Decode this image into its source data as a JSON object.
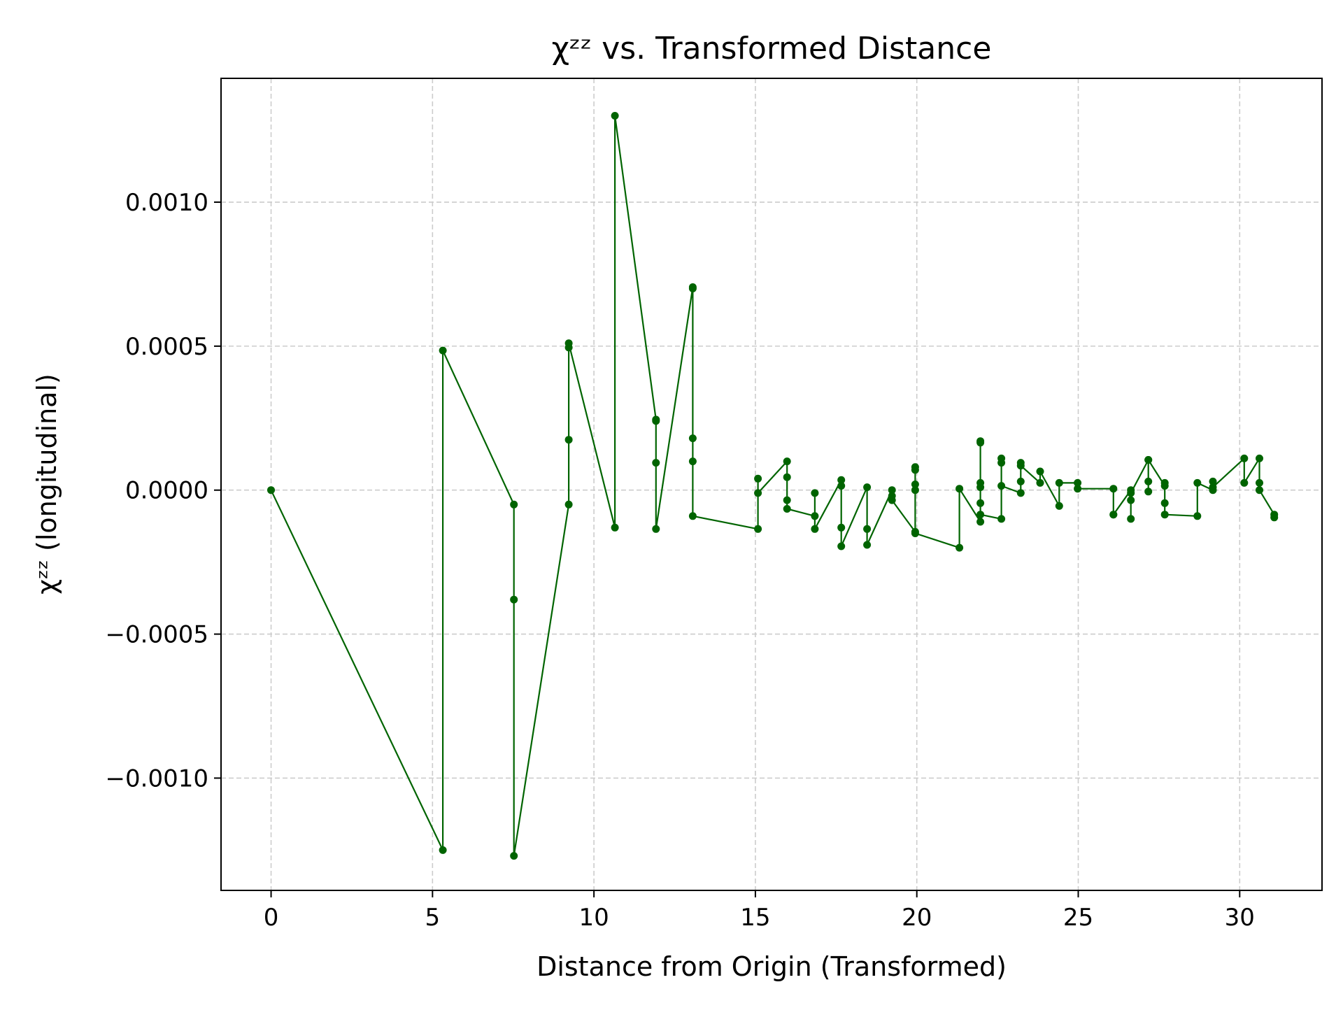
{
  "chart_data": {
    "type": "line",
    "title": "χᶻᶻ vs. Transformed Distance",
    "xlabel": "Distance from Origin (Transformed)",
    "ylabel": "χᶻᶻ (longitudinal)",
    "xlim": [
      -1.55,
      32.55
    ],
    "ylim": [
      -0.00139,
      0.00143
    ],
    "xticks": [
      0,
      5,
      10,
      15,
      20,
      25,
      30
    ],
    "xtick_labels": [
      "0",
      "5",
      "10",
      "15",
      "20",
      "25",
      "30"
    ],
    "yticks": [
      -0.001,
      -0.0005,
      0.0,
      0.0005,
      0.001
    ],
    "ytick_labels": [
      "−0.0010",
      "−0.0005",
      "0.0000",
      "0.0005",
      "0.0010"
    ],
    "grid": true,
    "line_color": "#006400",
    "series": [
      {
        "x": [
          0,
          5.32,
          5.32,
          7.52,
          7.52,
          7.52,
          9.22,
          9.22,
          9.22,
          9.22,
          10.65,
          10.65,
          11.92,
          11.92,
          11.92,
          11.92,
          13.06,
          13.06,
          13.06,
          13.06,
          13.06,
          15.08,
          15.08,
          15.08,
          15.98,
          15.98,
          15.98,
          15.98,
          16.84,
          16.84,
          16.84,
          17.66,
          17.66,
          17.66,
          17.66,
          18.46,
          18.46,
          18.46,
          19.23,
          19.23,
          19.23,
          19.95,
          19.95,
          19.95,
          19.95,
          19.95,
          19.95,
          21.32,
          21.32,
          21.97,
          21.97,
          21.97,
          21.97,
          21.97,
          21.97,
          21.97,
          22.62,
          22.62,
          22.62,
          22.62,
          23.22,
          23.22,
          23.22,
          23.22,
          23.82,
          23.82,
          24.41,
          24.41,
          24.98,
          24.98,
          26.09,
          26.09,
          26.09,
          26.63,
          26.63,
          26.63,
          26.63,
          27.17,
          27.17,
          27.17,
          27.17,
          27.68,
          27.68,
          27.68,
          27.68,
          28.69,
          28.69,
          29.17,
          29.17,
          29.17,
          30.14,
          30.14,
          30.61,
          30.61,
          30.61,
          31.07,
          31.07
        ],
        "y": [
          0.0,
          -0.00125,
          0.000485,
          -5e-05,
          -0.00038,
          -0.00127,
          -5e-05,
          0.000175,
          0.000495,
          0.00051,
          -0.00013,
          0.0013,
          0.000245,
          0.00024,
          9.5e-05,
          -0.000135,
          0.000705,
          0.0007,
          0.00018,
          0.0001,
          -9e-05,
          -0.000135,
          4e-05,
          -1e-05,
          0.0001,
          4.5e-05,
          -3.5e-05,
          -6.5e-05,
          -9e-05,
          -1e-05,
          -0.000135,
          3.5e-05,
          1.5e-05,
          -0.00013,
          -0.000195,
          1e-05,
          -0.000135,
          -0.00019,
          0.0,
          -2e-05,
          -3.5e-05,
          -0.000145,
          0.0,
          7e-05,
          8e-05,
          2e-05,
          -0.00015,
          -0.0002,
          5e-06,
          -0.00011,
          0.00017,
          0.000165,
          1e-05,
          2.5e-05,
          -4.5e-05,
          -8.5e-05,
          -0.0001,
          0.00011,
          9.5e-05,
          1.5e-05,
          -1e-05,
          3e-05,
          9.5e-05,
          8.5e-05,
          2.5e-05,
          6.5e-05,
          -5.5e-05,
          2.5e-05,
          2.5e-05,
          5e-06,
          5e-06,
          -8.5e-05,
          -8.5e-05,
          0.0,
          -0.0001,
          -3.5e-05,
          -1e-05,
          0.000105,
          -5e-06,
          3e-05,
          0.000105,
          1.5e-05,
          2.5e-05,
          -4.5e-05,
          -8.5e-05,
          -9e-05,
          2.5e-05,
          0.0,
          3e-05,
          1e-05,
          0.00011,
          2.5e-05,
          0.00011,
          2.5e-05,
          0.0,
          -8.5e-05,
          -9.5e-05
        ]
      }
    ]
  }
}
